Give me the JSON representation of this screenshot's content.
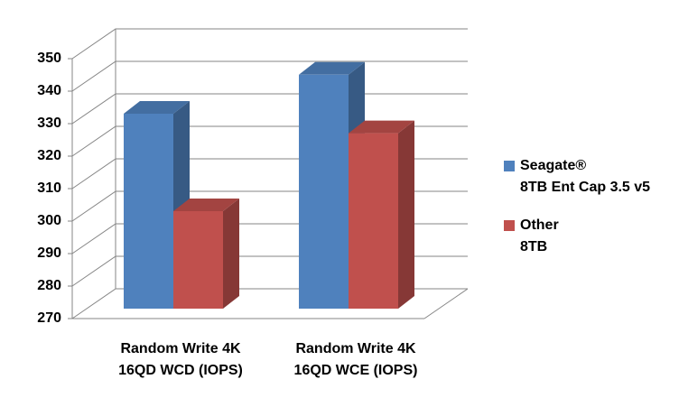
{
  "chart_data": {
    "type": "bar3d",
    "categories": [
      "Random Write 4K\n16QD WCD (IOPS)",
      "Random Write 4K\n16QD WCE (IOPS)"
    ],
    "series": [
      {
        "name": "Seagate®\n8TB Ent Cap 3.5 v5",
        "color": "#4f81bd",
        "values": [
          330,
          342
        ]
      },
      {
        "name": "Other\n8TB",
        "color": "#c0504d",
        "values": [
          300,
          324
        ]
      }
    ],
    "ylim": [
      270,
      350
    ],
    "yticks": [
      270,
      280,
      290,
      300,
      310,
      320,
      330,
      340,
      350
    ],
    "grid": true
  }
}
